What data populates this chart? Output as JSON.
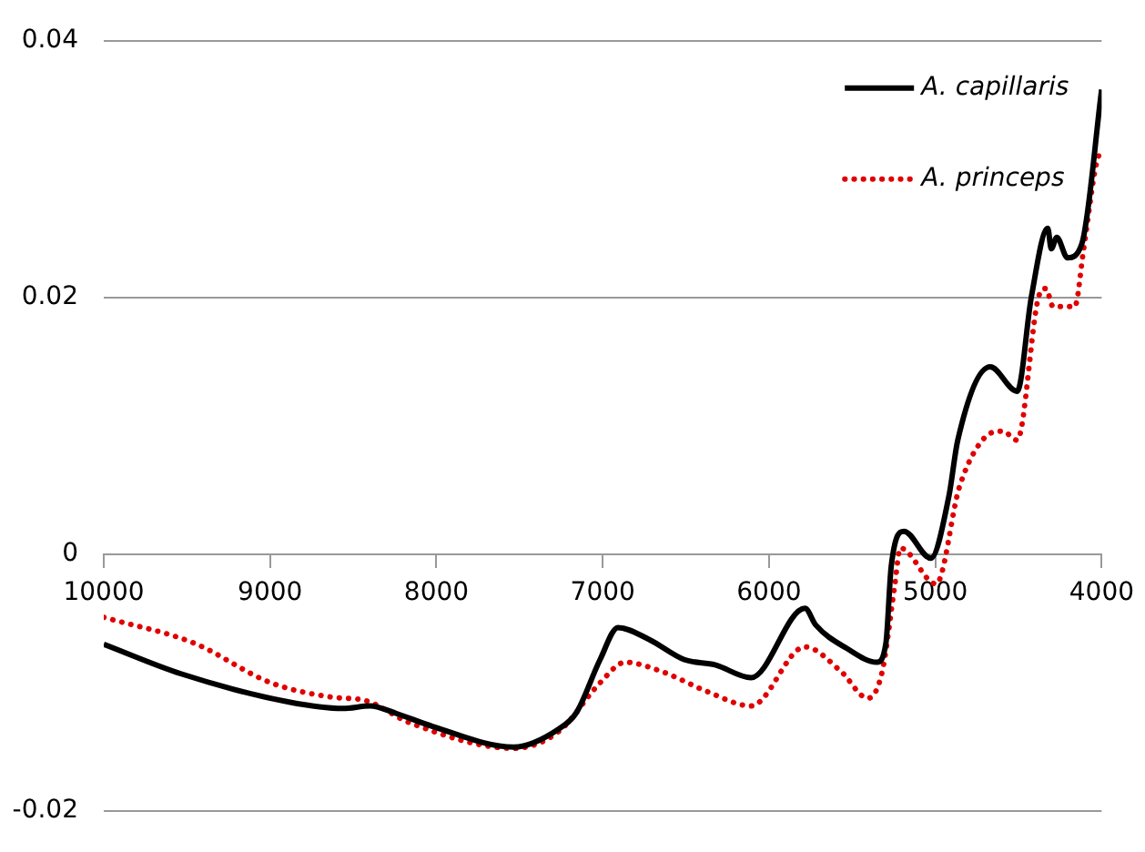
{
  "chart_data": {
    "type": "line",
    "xlim": [
      10000,
      4000
    ],
    "xticks": [
      10000,
      9000,
      8000,
      7000,
      6000,
      5000,
      4000
    ],
    "ylim": [
      -0.02,
      0.04
    ],
    "yticks": [
      -0.02,
      0,
      0.02,
      0.04
    ],
    "grid": "y",
    "legend": "top right",
    "marker": "none",
    "series": [
      {
        "name": "A. capillaris",
        "color": "#000000",
        "line_style": "solid",
        "x": [
          10000,
          9535,
          8886,
          8562,
          8400,
          8238,
          8022,
          7535,
          7265,
          7157,
          7016,
          6908,
          6724,
          6508,
          6324,
          6108,
          5784,
          5719,
          5535,
          5351,
          5297,
          5265,
          5189,
          5027,
          4919,
          4865,
          4670,
          4508,
          4422,
          4324,
          4303,
          4270,
          4205,
          4119,
          4000
        ],
        "values": [
          -0.007,
          -0.0093,
          -0.0115,
          -0.012,
          -0.0118,
          -0.0124,
          -0.0134,
          -0.015,
          -0.0136,
          -0.0123,
          -0.0082,
          -0.0057,
          -0.0066,
          -0.0082,
          -0.0086,
          -0.0096,
          -0.0042,
          -0.0055,
          -0.0073,
          -0.0084,
          -0.0069,
          -0.0009,
          0.0018,
          -0.0003,
          0.0045,
          0.0089,
          0.0146,
          0.0127,
          0.0201,
          0.0254,
          0.0238,
          0.0247,
          0.0231,
          0.0242,
          0.0362
        ]
      },
      {
        "name": "A. princeps",
        "color": "#e00000",
        "line_style": "dotted",
        "x": [
          10000,
          9459,
          8995,
          8638,
          8422,
          8162,
          7535,
          7265,
          7016,
          6865,
          6649,
          6368,
          6108,
          5784,
          5568,
          5405,
          5319,
          5243,
          5211,
          4995,
          4854,
          4703,
          4595,
          4508,
          4378,
          4335,
          4292,
          4162,
          4108,
          4022,
          4000
        ],
        "values": [
          -0.0049,
          -0.0069,
          -0.01,
          -0.0111,
          -0.0114,
          -0.0131,
          -0.0151,
          -0.0138,
          -0.01,
          -0.0084,
          -0.0091,
          -0.0107,
          -0.0118,
          -0.0072,
          -0.0091,
          -0.0112,
          -0.0091,
          -0.0023,
          0.0005,
          -0.0023,
          0.0053,
          0.0091,
          0.0096,
          0.0089,
          0.0201,
          0.0207,
          0.0193,
          0.0193,
          0.0238,
          0.0309,
          0.0312
        ]
      }
    ]
  }
}
